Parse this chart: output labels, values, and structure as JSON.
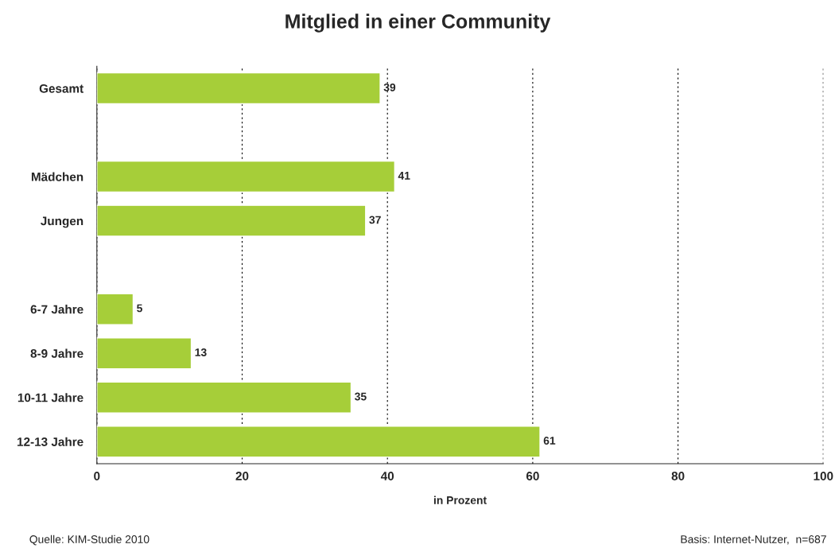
{
  "chart_data": {
    "type": "bar",
    "orientation": "horizontal",
    "title": "Mitglied in einer Community",
    "xlabel": "in Prozent",
    "categories": [
      "Gesamt",
      null,
      "Mädchen",
      "Jungen",
      null,
      "6-7 Jahre",
      "8-9 Jahre",
      "10-11 Jahre",
      "12-13 Jahre"
    ],
    "values": [
      39,
      null,
      41,
      37,
      null,
      5,
      13,
      35,
      61
    ],
    "color": "#a6ce39",
    "xlim": [
      0,
      100
    ],
    "xticks": [
      0,
      20,
      40,
      60,
      80,
      100
    ],
    "grid": "x",
    "data_labels": true,
    "annotations": [
      "Quelle: KIM-Studie 2010",
      "Basis: Internet-Nutzer,  n=687"
    ]
  }
}
